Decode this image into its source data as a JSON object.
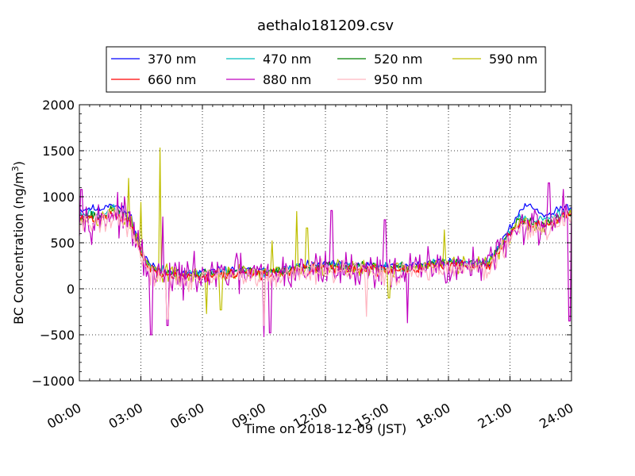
{
  "chart_data": {
    "type": "line",
    "title": "aethalo181209.csv",
    "xlabel": "Time on 2018-12-09 (JST)",
    "ylabel": "BC Concentration (ng/m³)",
    "ylabel_base": "BC Concentration (ng/m",
    "ylabel_sup": "3",
    "ylabel_tail": ")",
    "xlim": [
      0,
      24
    ],
    "ylim": [
      -1000,
      2000
    ],
    "xticks": [
      0,
      3,
      6,
      9,
      12,
      15,
      18,
      21,
      24
    ],
    "xtick_labels": [
      "00:00",
      "03:00",
      "06:00",
      "09:00",
      "12:00",
      "15:00",
      "18:00",
      "21:00",
      "24:00"
    ],
    "yticks": [
      -1000,
      -500,
      0,
      500,
      1000,
      1500,
      2000
    ],
    "ytick_labels": [
      "−1000",
      "−500",
      "0",
      "500",
      "1000",
      "1500",
      "2000"
    ],
    "grid": true,
    "legend_position": "top-center",
    "legend_columns": 4,
    "series": [
      {
        "name": "370 nm",
        "color": "#0000ff",
        "amp": 60,
        "seed": 11,
        "keypoints": [
          [
            0.0,
            850
          ],
          [
            0.5,
            880
          ],
          [
            1.0,
            860
          ],
          [
            1.5,
            930
          ],
          [
            2.0,
            880
          ],
          [
            2.5,
            800
          ],
          [
            3.0,
            420
          ],
          [
            3.5,
            250
          ],
          [
            4.0,
            200
          ],
          [
            5.0,
            170
          ],
          [
            6.0,
            180
          ],
          [
            7.0,
            200
          ],
          [
            8.0,
            210
          ],
          [
            9.0,
            190
          ],
          [
            10.0,
            220
          ],
          [
            11.0,
            250
          ],
          [
            12.0,
            270
          ],
          [
            13.0,
            260
          ],
          [
            14.0,
            250
          ],
          [
            15.0,
            240
          ],
          [
            16.0,
            250
          ],
          [
            17.0,
            280
          ],
          [
            18.0,
            300
          ],
          [
            19.0,
            280
          ],
          [
            20.0,
            300
          ],
          [
            21.0,
            650
          ],
          [
            21.5,
            860
          ],
          [
            22.0,
            920
          ],
          [
            22.5,
            820
          ],
          [
            23.0,
            800
          ],
          [
            23.5,
            880
          ],
          [
            24.0,
            900
          ]
        ]
      },
      {
        "name": "470 nm",
        "color": "#00bfbf",
        "amp": 70,
        "seed": 23,
        "keypoints": [
          [
            0.0,
            800
          ],
          [
            0.5,
            830
          ],
          [
            1.0,
            800
          ],
          [
            1.5,
            880
          ],
          [
            2.0,
            840
          ],
          [
            2.5,
            760
          ],
          [
            3.0,
            400
          ],
          [
            3.5,
            230
          ],
          [
            4.0,
            190
          ],
          [
            5.0,
            160
          ],
          [
            6.0,
            170
          ],
          [
            7.0,
            190
          ],
          [
            8.0,
            200
          ],
          [
            9.0,
            180
          ],
          [
            10.0,
            210
          ],
          [
            11.0,
            240
          ],
          [
            12.0,
            260
          ],
          [
            13.0,
            250
          ],
          [
            14.0,
            240
          ],
          [
            15.0,
            230
          ],
          [
            16.0,
            240
          ],
          [
            17.0,
            270
          ],
          [
            18.0,
            290
          ],
          [
            19.0,
            270
          ],
          [
            20.0,
            290
          ],
          [
            21.0,
            620
          ],
          [
            21.5,
            800
          ],
          [
            22.0,
            740
          ],
          [
            22.5,
            760
          ],
          [
            23.0,
            760
          ],
          [
            23.5,
            830
          ],
          [
            24.0,
            860
          ]
        ]
      },
      {
        "name": "520 nm",
        "color": "#008000",
        "amp": 75,
        "seed": 37,
        "keypoints": [
          [
            0.0,
            780
          ],
          [
            0.5,
            800
          ],
          [
            1.0,
            780
          ],
          [
            1.5,
            850
          ],
          [
            2.0,
            820
          ],
          [
            2.5,
            740
          ],
          [
            3.0,
            390
          ],
          [
            3.5,
            220
          ],
          [
            4.0,
            180
          ],
          [
            5.0,
            150
          ],
          [
            6.0,
            160
          ],
          [
            7.0,
            180
          ],
          [
            8.0,
            190
          ],
          [
            9.0,
            170
          ],
          [
            10.0,
            200
          ],
          [
            11.0,
            230
          ],
          [
            12.0,
            250
          ],
          [
            13.0,
            240
          ],
          [
            14.0,
            230
          ],
          [
            15.0,
            220
          ],
          [
            16.0,
            230
          ],
          [
            17.0,
            260
          ],
          [
            18.0,
            280
          ],
          [
            19.0,
            260
          ],
          [
            20.0,
            280
          ],
          [
            21.0,
            600
          ],
          [
            21.5,
            760
          ],
          [
            22.0,
            720
          ],
          [
            22.5,
            700
          ],
          [
            23.0,
            740
          ],
          [
            23.5,
            800
          ],
          [
            24.0,
            830
          ]
        ]
      },
      {
        "name": "590 nm",
        "color": "#bfbf00",
        "amp": 130,
        "seed": 53,
        "keypoints": [
          [
            0.0,
            760
          ],
          [
            0.5,
            780
          ],
          [
            1.0,
            760
          ],
          [
            1.5,
            830
          ],
          [
            2.0,
            800
          ],
          [
            2.5,
            720
          ],
          [
            3.0,
            380
          ],
          [
            3.5,
            210
          ],
          [
            4.0,
            170
          ],
          [
            5.0,
            140
          ],
          [
            6.0,
            150
          ],
          [
            7.0,
            170
          ],
          [
            8.0,
            180
          ],
          [
            9.0,
            160
          ],
          [
            10.0,
            190
          ],
          [
            11.0,
            220
          ],
          [
            12.0,
            240
          ],
          [
            13.0,
            230
          ],
          [
            14.0,
            220
          ],
          [
            15.0,
            210
          ],
          [
            16.0,
            220
          ],
          [
            17.0,
            250
          ],
          [
            18.0,
            270
          ],
          [
            19.0,
            250
          ],
          [
            20.0,
            270
          ],
          [
            21.0,
            580
          ],
          [
            21.5,
            740
          ],
          [
            22.0,
            700
          ],
          [
            22.5,
            680
          ],
          [
            23.0,
            720
          ],
          [
            23.5,
            780
          ],
          [
            24.0,
            810
          ]
        ],
        "spikes": [
          [
            2.4,
            1200
          ],
          [
            3.0,
            940
          ],
          [
            3.95,
            1530
          ],
          [
            6.2,
            -270
          ],
          [
            6.9,
            -230
          ],
          [
            9.4,
            520
          ],
          [
            10.6,
            840
          ],
          [
            11.1,
            660
          ],
          [
            15.1,
            -100
          ],
          [
            17.8,
            640
          ]
        ]
      },
      {
        "name": "660 nm",
        "color": "#ff0000",
        "amp": 80,
        "seed": 71,
        "keypoints": [
          [
            0.0,
            750
          ],
          [
            0.5,
            770
          ],
          [
            1.0,
            750
          ],
          [
            1.5,
            820
          ],
          [
            2.0,
            790
          ],
          [
            2.5,
            710
          ],
          [
            3.0,
            370
          ],
          [
            3.5,
            200
          ],
          [
            4.0,
            160
          ],
          [
            5.0,
            130
          ],
          [
            6.0,
            140
          ],
          [
            7.0,
            160
          ],
          [
            8.0,
            170
          ],
          [
            9.0,
            150
          ],
          [
            10.0,
            180
          ],
          [
            11.0,
            210
          ],
          [
            12.0,
            230
          ],
          [
            13.0,
            220
          ],
          [
            14.0,
            210
          ],
          [
            15.0,
            200
          ],
          [
            16.0,
            210
          ],
          [
            17.0,
            240
          ],
          [
            18.0,
            260
          ],
          [
            19.0,
            240
          ],
          [
            20.0,
            260
          ],
          [
            21.0,
            560
          ],
          [
            21.5,
            720
          ],
          [
            22.0,
            690
          ],
          [
            22.5,
            670
          ],
          [
            23.0,
            700
          ],
          [
            23.5,
            770
          ],
          [
            24.0,
            800
          ]
        ]
      },
      {
        "name": "880 nm",
        "color": "#bf00bf",
        "amp": 300,
        "seed": 97,
        "keypoints": [
          [
            0.0,
            760
          ],
          [
            0.5,
            780
          ],
          [
            1.0,
            740
          ],
          [
            1.5,
            820
          ],
          [
            2.0,
            800
          ],
          [
            2.5,
            700
          ],
          [
            3.0,
            360
          ],
          [
            3.5,
            180
          ],
          [
            4.0,
            140
          ],
          [
            5.0,
            120
          ],
          [
            6.0,
            130
          ],
          [
            7.0,
            150
          ],
          [
            8.0,
            160
          ],
          [
            9.0,
            140
          ],
          [
            10.0,
            170
          ],
          [
            11.0,
            200
          ],
          [
            12.0,
            220
          ],
          [
            13.0,
            210
          ],
          [
            14.0,
            200
          ],
          [
            15.0,
            190
          ],
          [
            16.0,
            200
          ],
          [
            17.0,
            230
          ],
          [
            18.0,
            250
          ],
          [
            19.0,
            230
          ],
          [
            20.0,
            250
          ],
          [
            21.0,
            560
          ],
          [
            21.5,
            720
          ],
          [
            22.0,
            700
          ],
          [
            22.5,
            680
          ],
          [
            23.0,
            720
          ],
          [
            23.5,
            780
          ],
          [
            24.0,
            780
          ]
        ],
        "spikes": [
          [
            0.1,
            1080
          ],
          [
            2.2,
            1000
          ],
          [
            3.5,
            -500
          ],
          [
            4.05,
            780
          ],
          [
            4.3,
            -400
          ],
          [
            9.0,
            -520
          ],
          [
            9.3,
            -480
          ],
          [
            12.3,
            850
          ],
          [
            14.9,
            750
          ],
          [
            16.0,
            -370
          ],
          [
            22.9,
            1150
          ],
          [
            23.6,
            1080
          ],
          [
            23.9,
            -350
          ]
        ]
      },
      {
        "name": "950 nm",
        "color": "#ffb6c1",
        "amp": 180,
        "seed": 131,
        "keypoints": [
          [
            0.0,
            700
          ],
          [
            0.5,
            740
          ],
          [
            1.0,
            700
          ],
          [
            1.5,
            780
          ],
          [
            2.0,
            760
          ],
          [
            2.5,
            660
          ],
          [
            3.0,
            330
          ],
          [
            3.5,
            170
          ],
          [
            4.0,
            120
          ],
          [
            5.0,
            100
          ],
          [
            6.0,
            110
          ],
          [
            7.0,
            130
          ],
          [
            8.0,
            140
          ],
          [
            9.0,
            120
          ],
          [
            10.0,
            150
          ],
          [
            11.0,
            180
          ],
          [
            12.0,
            200
          ],
          [
            13.0,
            190
          ],
          [
            14.0,
            180
          ],
          [
            15.0,
            170
          ],
          [
            16.0,
            180
          ],
          [
            17.0,
            210
          ],
          [
            18.0,
            230
          ],
          [
            19.0,
            210
          ],
          [
            20.0,
            230
          ],
          [
            21.0,
            520
          ],
          [
            21.5,
            680
          ],
          [
            22.0,
            650
          ],
          [
            22.5,
            640
          ],
          [
            23.0,
            670
          ],
          [
            23.5,
            730
          ],
          [
            24.0,
            740
          ]
        ],
        "spikes": [
          [
            4.3,
            -330
          ],
          [
            9.0,
            -400
          ],
          [
            14.0,
            -300
          ]
        ]
      }
    ]
  }
}
